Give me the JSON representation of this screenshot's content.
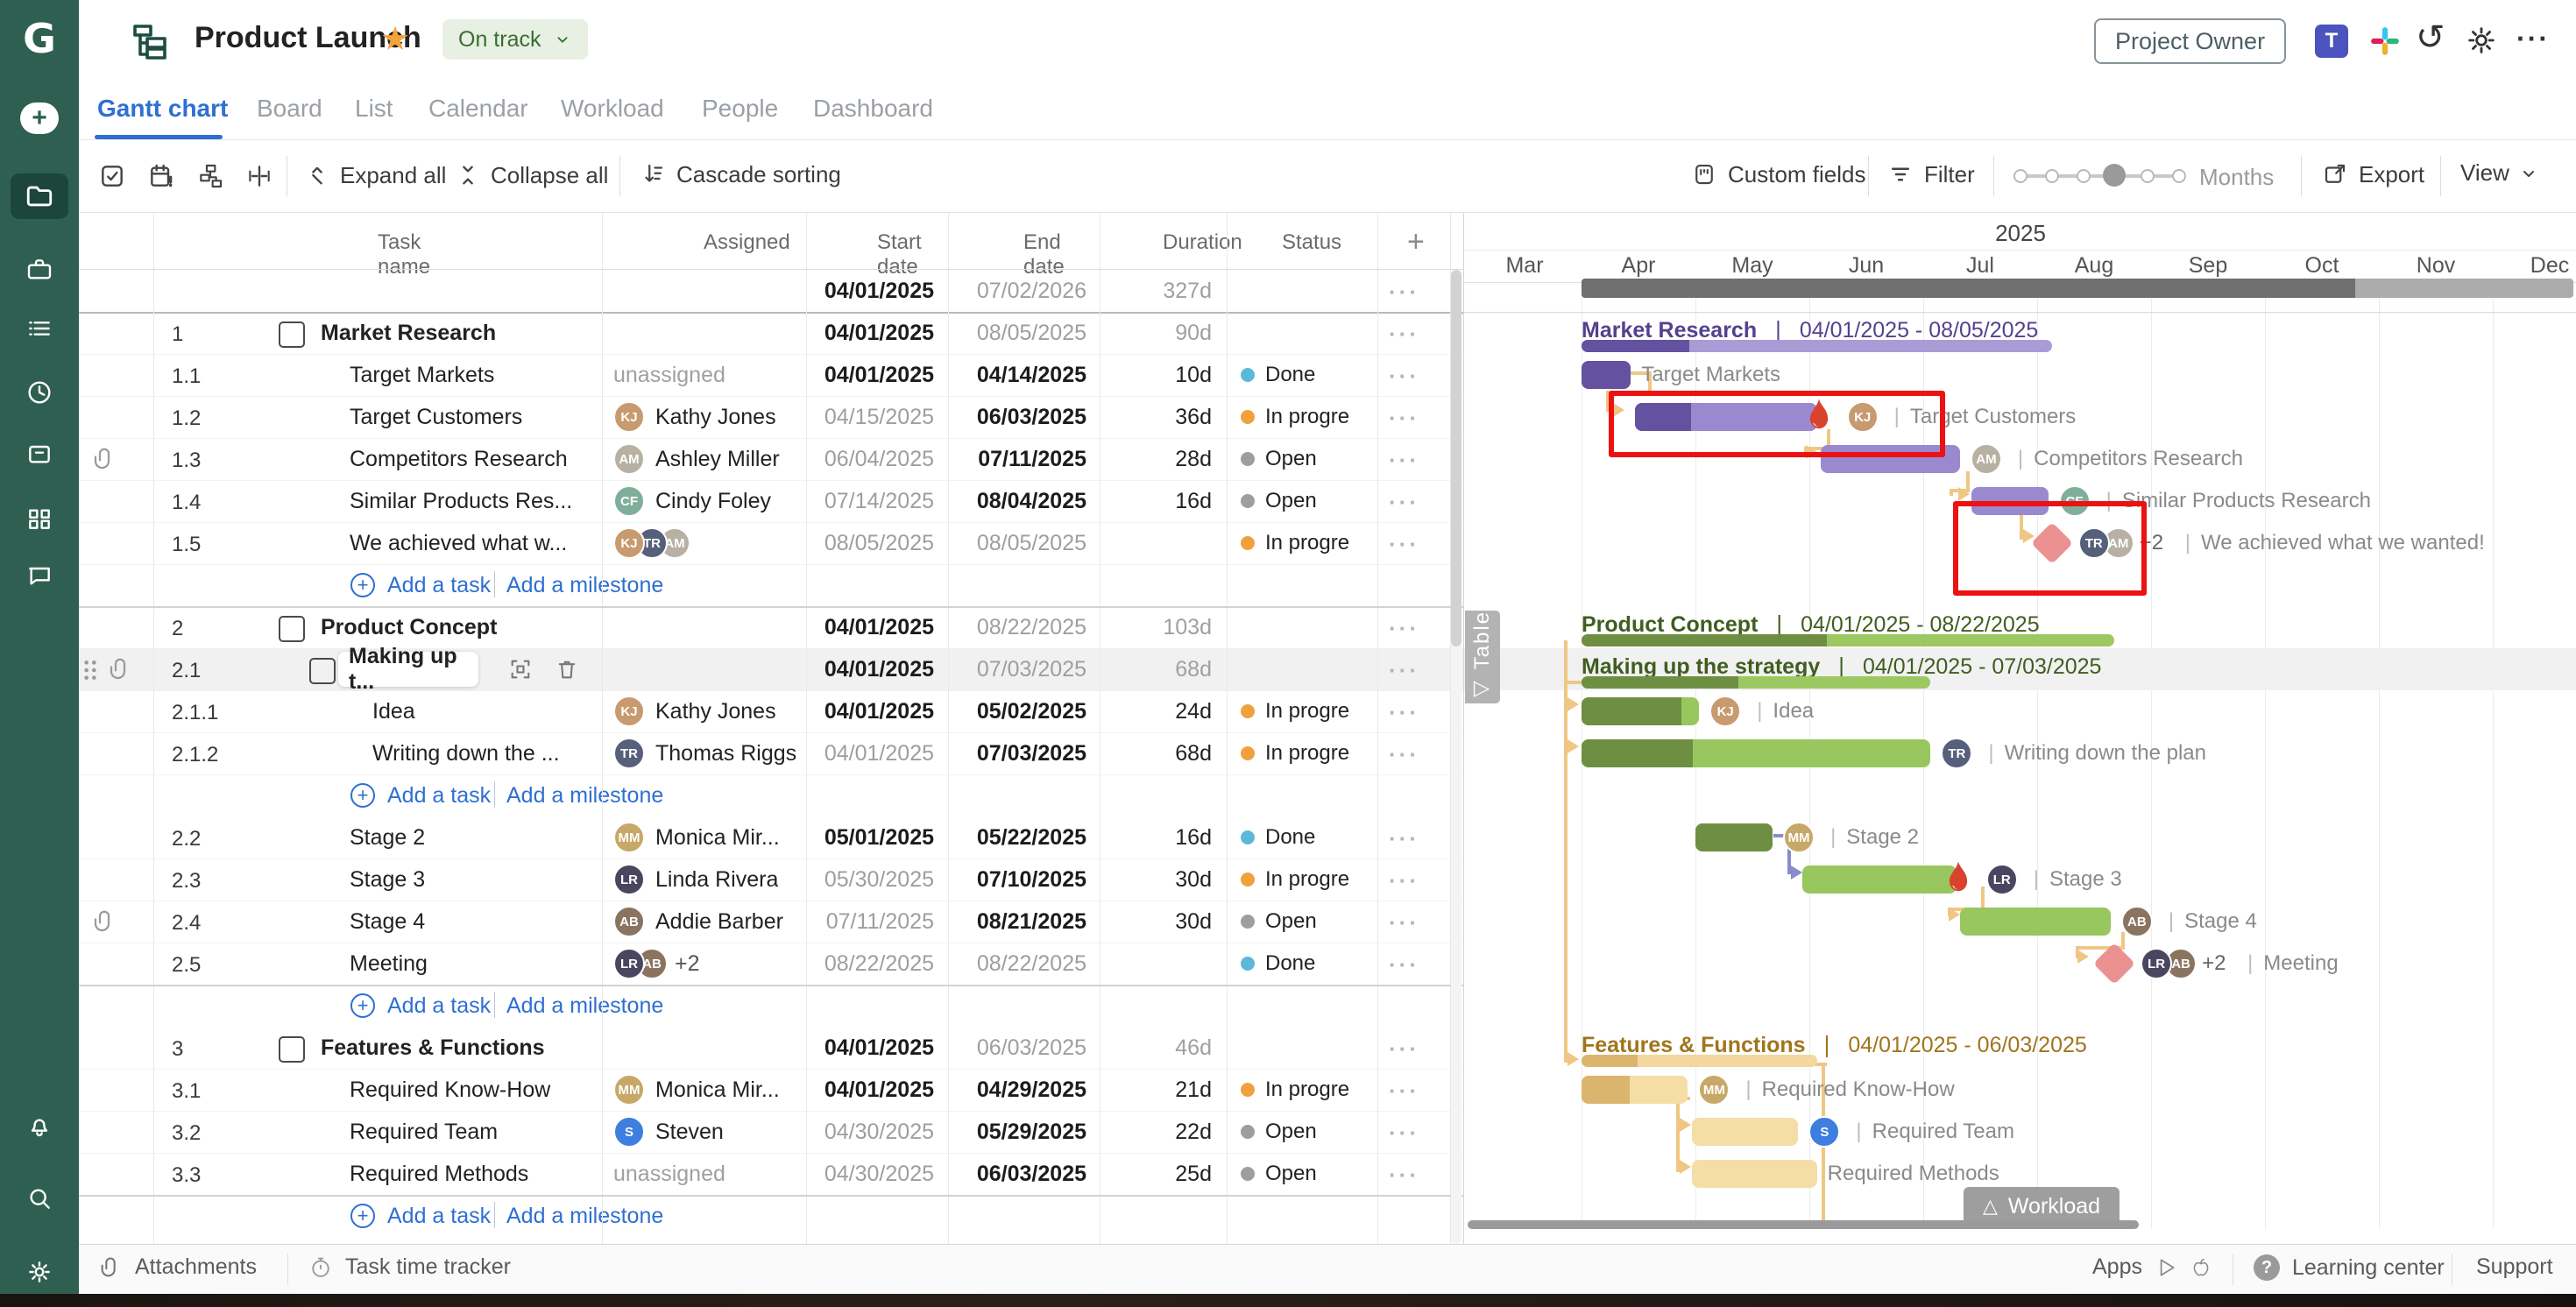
{
  "header": {
    "title": "Product Launch",
    "status_label": "On track",
    "role_badge": "Project Owner",
    "logo_letter": "G"
  },
  "tabs": [
    {
      "label": "Gantt chart",
      "active": true
    },
    {
      "label": "Board",
      "active": false
    },
    {
      "label": "List",
      "active": false
    },
    {
      "label": "Calendar",
      "active": false
    },
    {
      "label": "Workload",
      "active": false
    },
    {
      "label": "People",
      "active": false
    },
    {
      "label": "Dashboard",
      "active": false
    }
  ],
  "toolbar": {
    "expand_all": "Expand all",
    "collapse_all": "Collapse all",
    "cascade_sorting": "Cascade sorting",
    "custom_fields": "Custom fields",
    "filter": "Filter",
    "zoom_label": "Months",
    "export": "Export",
    "view": "View"
  },
  "table": {
    "columns": [
      "Task name",
      "Assigned",
      "Start date",
      "End date",
      "Duration",
      "Status"
    ],
    "add_column_label": "+",
    "row_menu_glyph": "···",
    "add_task_label": "Add a task",
    "add_milestone_label": "Add a milestone",
    "unassigned_label": "unassigned"
  },
  "people": {
    "kathy": {
      "name": "Kathy Jones",
      "initials": "KJ",
      "color": "#c89a6f"
    },
    "ashley": {
      "name": "Ashley Miller",
      "initials": "AM",
      "color": "#b7b0a3"
    },
    "cindy": {
      "name": "Cindy Foley",
      "initials": "CF",
      "color": "#7fae9b"
    },
    "thomas": {
      "name": "Thomas Riggs",
      "initials": "TR",
      "color": "#57607a"
    },
    "monica": {
      "name": "Monica Mir...",
      "initials": "MM",
      "color": "#c7a868"
    },
    "linda": {
      "name": "Linda Rivera",
      "initials": "LR",
      "color": "#4a4660"
    },
    "addie": {
      "name": "Addie Barber",
      "initials": "AB",
      "color": "#8a7460"
    },
    "steven": {
      "name": "Steven",
      "initials": "S",
      "color": "#3e7ee0"
    }
  },
  "status_colors": {
    "Done": "#5cb8da",
    "In progre": "#f0a13e",
    "Open": "#9e9e9e"
  },
  "gantt_colors": {
    "purple": {
      "dark": "#64519f",
      "light": "#9b89cf",
      "track": "#a99bd6",
      "label": "#53418f"
    },
    "green": {
      "dark": "#6e8f41",
      "light": "#98c65f",
      "track": "#9cc861",
      "label": "#3f5e1f"
    },
    "tan": {
      "dark": "#dbb56e",
      "light": "#f5dda6",
      "track": "#f2d79f",
      "label": "#a1751d"
    },
    "summary": {
      "dark": "#6f6f6f",
      "light": "#ababab"
    }
  },
  "gantt": {
    "year": "2025",
    "months": [
      "Mar",
      "Apr",
      "May",
      "Jun",
      "Jul",
      "Aug",
      "Sep",
      "Oct",
      "Nov",
      "Dec"
    ],
    "workload_label": "Workload",
    "table_tab_label": "Table",
    "table_tab_glyph": "◁"
  },
  "rows": [
    {
      "type": "summary",
      "start": "04/01/2025",
      "start_bold": true,
      "end": "07/02/2026",
      "end_bold": false,
      "duration": "327d",
      "gantt": {
        "kind": "summary",
        "start": "04/01/2025",
        "end": "07/02/2026",
        "progress": 0.78
      }
    },
    {
      "type": "group",
      "num": "1",
      "name": "Market Research",
      "level": 1,
      "start": "04/01/2025",
      "start_bold": true,
      "end": "08/05/2025",
      "end_bold": false,
      "duration": "90d",
      "gantt": {
        "kind": "section",
        "color": "purple",
        "label": "Market Research",
        "range": "04/01/2025 - 08/05/2025",
        "bar_start": "04/01/2025",
        "bar_end": "08/05/2025",
        "progress": 0.23
      }
    },
    {
      "type": "task",
      "num": "1.1",
      "name": "Target Markets",
      "level": 2,
      "assigned": {
        "kind": "none"
      },
      "start": "04/01/2025",
      "start_bold": true,
      "end": "04/14/2025",
      "end_bold": true,
      "duration": "10d",
      "status": "Done",
      "gantt": {
        "kind": "bar",
        "color": "purple",
        "start": "04/01/2025",
        "end": "04/14/2025",
        "progress": 1,
        "label": "Target Markets",
        "sep": false
      }
    },
    {
      "type": "task",
      "num": "1.2",
      "name": "Target Customers",
      "level": 2,
      "assigned": {
        "kind": "person",
        "person": "kathy"
      },
      "start": "04/15/2025",
      "start_bold": false,
      "end": "06/03/2025",
      "end_bold": true,
      "duration": "36d",
      "status": "In progre",
      "gantt": {
        "kind": "bar",
        "color": "purple",
        "start": "04/15/2025",
        "end": "06/03/2025",
        "progress": 0.31,
        "flame": true,
        "avatar": "kathy",
        "label": "Target Customers",
        "sep": true
      }
    },
    {
      "type": "task",
      "num": "1.3",
      "name": "Competitors Research",
      "level": 2,
      "paperclip": true,
      "assigned": {
        "kind": "person",
        "person": "ashley"
      },
      "start": "06/04/2025",
      "start_bold": false,
      "end": "07/11/2025",
      "end_bold": true,
      "duration": "28d",
      "status": "Open",
      "gantt": {
        "kind": "bar",
        "color": "purple",
        "start": "06/04/2025",
        "end": "07/11/2025",
        "progress": 0,
        "avatar": "ashley",
        "label": "Competitors Research",
        "sep": true
      }
    },
    {
      "type": "task",
      "num": "1.4",
      "name": "Similar Products Res...",
      "level": 2,
      "assigned": {
        "kind": "person",
        "person": "cindy"
      },
      "start": "07/14/2025",
      "start_bold": false,
      "end": "08/04/2025",
      "end_bold": true,
      "duration": "16d",
      "status": "Open",
      "gantt": {
        "kind": "bar",
        "color": "purple",
        "start": "07/14/2025",
        "end": "08/04/2025",
        "progress": 0,
        "avatar": "cindy",
        "label": "Similar Products Research",
        "sep": true
      }
    },
    {
      "type": "task",
      "num": "1.5",
      "name": "We achieved what w...",
      "level": 2,
      "assigned": {
        "kind": "people",
        "people": [
          "kathy",
          "thomas",
          "ashley"
        ]
      },
      "start": "08/05/2025",
      "start_bold": false,
      "end": "08/05/2025",
      "end_bold": false,
      "duration": "",
      "status": "In progre",
      "gantt": {
        "kind": "milestone",
        "date": "08/05/2025",
        "avatars": [
          "thomas",
          "ashley"
        ],
        "extra": "+2",
        "label": "We achieved what we wanted!"
      }
    },
    {
      "type": "add"
    },
    {
      "type": "group",
      "num": "2",
      "name": "Product Concept",
      "level": 1,
      "start": "04/01/2025",
      "start_bold": true,
      "end": "08/22/2025",
      "end_bold": false,
      "duration": "103d",
      "gantt": {
        "kind": "section",
        "color": "green",
        "label": "Product Concept",
        "range": "04/01/2025 - 08/22/2025",
        "bar_start": "04/01/2025",
        "bar_end": "08/22/2025",
        "progress": 0.46
      }
    },
    {
      "type": "group",
      "num": "2.1",
      "name": "Making up t...",
      "level": 2,
      "selected": true,
      "paperclip": true,
      "drag": true,
      "start": "04/01/2025",
      "start_bold": true,
      "end": "07/03/2025",
      "end_bold": false,
      "duration": "68d",
      "gantt": {
        "kind": "section",
        "color": "green",
        "label": "Making up the strategy",
        "range": "04/01/2025 - 07/03/2025",
        "bar_start": "04/01/2025",
        "bar_end": "07/03/2025",
        "progress": 0.45
      }
    },
    {
      "type": "task",
      "num": "2.1.1",
      "name": "Idea",
      "level": 3,
      "assigned": {
        "kind": "person",
        "person": "kathy"
      },
      "start": "04/01/2025",
      "start_bold": true,
      "end": "05/02/2025",
      "end_bold": true,
      "duration": "24d",
      "status": "In progre",
      "gantt": {
        "kind": "bar",
        "color": "green",
        "start": "04/01/2025",
        "end": "05/02/2025",
        "progress": 0.85,
        "avatar": "kathy",
        "label": "Idea",
        "sep": true
      }
    },
    {
      "type": "task",
      "num": "2.1.2",
      "name": "Writing down the ...",
      "level": 3,
      "assigned": {
        "kind": "person",
        "person": "thomas"
      },
      "start": "04/01/2025",
      "start_bold": false,
      "end": "07/03/2025",
      "end_bold": true,
      "duration": "68d",
      "status": "In progre",
      "gantt": {
        "kind": "bar",
        "color": "green",
        "start": "04/01/2025",
        "end": "07/03/2025",
        "progress": 0.32,
        "avatar": "thomas",
        "label": "Writing down the plan",
        "sep": true
      }
    },
    {
      "type": "add"
    },
    {
      "type": "task",
      "num": "2.2",
      "name": "Stage 2",
      "level": 2,
      "assigned": {
        "kind": "person",
        "person": "monica"
      },
      "start": "05/01/2025",
      "start_bold": true,
      "end": "05/22/2025",
      "end_bold": true,
      "duration": "16d",
      "status": "Done",
      "gantt": {
        "kind": "bar",
        "color": "green",
        "start": "05/01/2025",
        "end": "05/22/2025",
        "progress": 1,
        "avatar": "monica",
        "label": "Stage 2",
        "sep": true
      }
    },
    {
      "type": "task",
      "num": "2.3",
      "name": "Stage 3",
      "level": 2,
      "assigned": {
        "kind": "person",
        "person": "linda"
      },
      "start": "05/30/2025",
      "start_bold": false,
      "end": "07/10/2025",
      "end_bold": true,
      "duration": "30d",
      "status": "In progre",
      "gantt": {
        "kind": "bar",
        "color": "green",
        "start": "05/30/2025",
        "end": "07/10/2025",
        "progress": 0,
        "flame": true,
        "avatar": "linda",
        "label": "Stage 3",
        "sep": true
      }
    },
    {
      "type": "task",
      "num": "2.4",
      "name": "Stage 4",
      "level": 2,
      "paperclip": true,
      "assigned": {
        "kind": "person",
        "person": "addie"
      },
      "start": "07/11/2025",
      "start_bold": false,
      "end": "08/21/2025",
      "end_bold": true,
      "duration": "30d",
      "status": "Open",
      "gantt": {
        "kind": "bar",
        "color": "green",
        "start": "07/11/2025",
        "end": "08/21/2025",
        "progress": 0,
        "avatar": "addie",
        "label": "Stage 4",
        "sep": true
      }
    },
    {
      "type": "task",
      "num": "2.5",
      "name": "Meeting",
      "level": 2,
      "assigned": {
        "kind": "people",
        "people": [
          "linda",
          "addie"
        ],
        "extra": "+2"
      },
      "start": "08/22/2025",
      "start_bold": false,
      "end": "08/22/2025",
      "end_bold": false,
      "duration": "",
      "status": "Done",
      "gantt": {
        "kind": "milestone",
        "date": "08/22/2025",
        "avatars": [
          "linda",
          "addie"
        ],
        "extra": "+2",
        "label": "Meeting"
      }
    },
    {
      "type": "add"
    },
    {
      "type": "group",
      "num": "3",
      "name": "Features & Functions",
      "level": 1,
      "start": "04/01/2025",
      "start_bold": true,
      "end": "06/03/2025",
      "end_bold": false,
      "duration": "46d",
      "gantt": {
        "kind": "section",
        "color": "tan",
        "label": "Features & Functions",
        "range": "04/01/2025 - 06/03/2025",
        "bar_start": "04/01/2025",
        "bar_end": "06/03/2025",
        "progress": 0.24
      }
    },
    {
      "type": "task",
      "num": "3.1",
      "name": "Required Know-How",
      "level": 2,
      "assigned": {
        "kind": "person",
        "person": "monica"
      },
      "start": "04/01/2025",
      "start_bold": true,
      "end": "04/29/2025",
      "end_bold": true,
      "duration": "21d",
      "status": "In progre",
      "gantt": {
        "kind": "bar",
        "color": "tan",
        "start": "04/01/2025",
        "end": "04/29/2025",
        "progress": 0.45,
        "avatar": "monica",
        "label": "Required Know-How",
        "sep": true
      }
    },
    {
      "type": "task",
      "num": "3.2",
      "name": "Required Team",
      "level": 2,
      "assigned": {
        "kind": "person",
        "person": "steven"
      },
      "start": "04/30/2025",
      "start_bold": false,
      "end": "05/29/2025",
      "end_bold": true,
      "duration": "22d",
      "status": "Open",
      "gantt": {
        "kind": "bar",
        "color": "tan",
        "start": "04/30/2025",
        "end": "05/29/2025",
        "progress": 0,
        "avatar": "steven",
        "label": "Required Team",
        "sep": true
      }
    },
    {
      "type": "task",
      "num": "3.3",
      "name": "Required Methods",
      "level": 2,
      "assigned": {
        "kind": "none"
      },
      "start": "04/30/2025",
      "start_bold": false,
      "end": "06/03/2025",
      "end_bold": true,
      "duration": "25d",
      "status": "Open",
      "gantt": {
        "kind": "bar",
        "color": "tan",
        "start": "04/30/2025",
        "end": "06/03/2025",
        "progress": 0,
        "label": "Required Methods",
        "sep": false
      }
    },
    {
      "type": "add"
    }
  ],
  "footer": {
    "attachments": "Attachments",
    "task_time_tracker": "Task time tracker",
    "apps": "Apps",
    "learning_center": "Learning center",
    "support": "Support"
  }
}
